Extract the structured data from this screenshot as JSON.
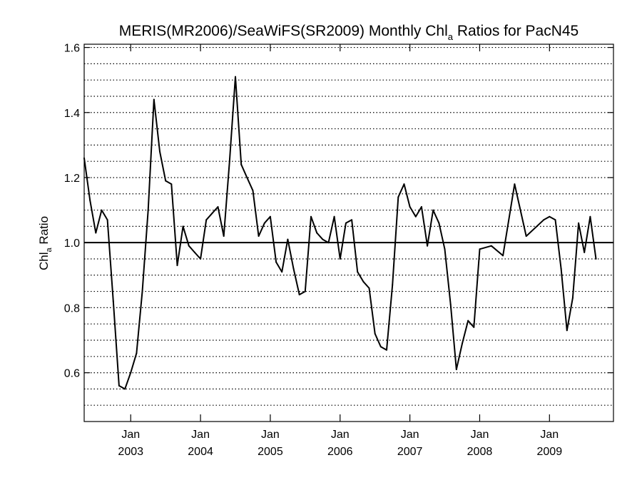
{
  "chart_data": {
    "type": "line",
    "title": {
      "pre": "MERIS(MR2006)/SeaWiFS(SR2009) Monthly Chl",
      "sub": "a",
      "post": " Ratios for PacN45"
    },
    "ylabel": {
      "pre": "Chl",
      "sub": "a",
      "post": " Ratio"
    },
    "xlabel": "",
    "ylim": [
      0.45,
      1.61
    ],
    "y_ticks": [
      "0.6",
      "0.8",
      "1.0",
      "1.2",
      "1.4",
      "1.6"
    ],
    "y_tick_values": [
      0.6,
      0.8,
      1.0,
      1.2,
      1.4,
      1.6
    ],
    "xlim": [
      "2002-05",
      "2009-12"
    ],
    "x_ticks": [
      {
        "month": "Jan",
        "year": "2003",
        "date": "2003-01"
      },
      {
        "month": "Jan",
        "year": "2004",
        "date": "2004-01"
      },
      {
        "month": "Jan",
        "year": "2005",
        "date": "2005-01"
      },
      {
        "month": "Jan",
        "year": "2006",
        "date": "2006-01"
      },
      {
        "month": "Jan",
        "year": "2007",
        "date": "2007-01"
      },
      {
        "month": "Jan",
        "year": "2008",
        "date": "2008-01"
      },
      {
        "month": "Jan",
        "year": "2009",
        "date": "2009-01"
      }
    ],
    "grid": "dotted horizontal lines every 0.05",
    "reference_line": 1.0,
    "series": [
      {
        "x": [
          "2002-05",
          "2002-06",
          "2002-07",
          "2002-08",
          "2002-09",
          "2002-10",
          "2002-11",
          "2002-12",
          "2003-01",
          "2003-02",
          "2003-03",
          "2003-04",
          "2003-05",
          "2003-06",
          "2003-07",
          "2003-08",
          "2003-09",
          "2003-10",
          "2003-11",
          "2003-12",
          "2004-01",
          "2004-02",
          "2004-03",
          "2004-04",
          "2004-05",
          "2004-06",
          "2004-07",
          "2004-08",
          "2004-09",
          "2004-10",
          "2004-11",
          "2004-12",
          "2005-01",
          "2005-02",
          "2005-03",
          "2005-04",
          "2005-05",
          "2005-06",
          "2005-07",
          "2005-08",
          "2005-09",
          "2005-10",
          "2005-11",
          "2005-12",
          "2006-01",
          "2006-02",
          "2006-03",
          "2006-04",
          "2006-05",
          "2006-06",
          "2006-07",
          "2006-08",
          "2006-09",
          "2006-10",
          "2006-11",
          "2006-12",
          "2007-01",
          "2007-02",
          "2007-03",
          "2007-04",
          "2007-05",
          "2007-06",
          "2007-07",
          "2007-08",
          "2007-09",
          "2007-10",
          "2007-11",
          "2007-12",
          "2008-01",
          "2008-03",
          "2008-05",
          "2008-07",
          "2008-09",
          "2008-12",
          "2009-01",
          "2009-02",
          "2009-03",
          "2009-04",
          "2009-05",
          "2009-06",
          "2009-07",
          "2009-08",
          "2009-09"
        ],
        "values": [
          1.26,
          1.13,
          1.03,
          1.1,
          1.07,
          0.82,
          0.56,
          0.55,
          0.6,
          0.66,
          0.85,
          1.1,
          1.44,
          1.28,
          1.19,
          1.18,
          0.93,
          1.05,
          0.99,
          0.97,
          0.95,
          1.07,
          1.09,
          1.11,
          1.02,
          1.25,
          1.51,
          1.24,
          1.2,
          1.16,
          1.02,
          1.06,
          1.08,
          0.94,
          0.91,
          1.01,
          0.92,
          0.84,
          0.85,
          1.08,
          1.03,
          1.01,
          1.0,
          1.08,
          0.95,
          1.06,
          1.07,
          0.91,
          0.88,
          0.86,
          0.72,
          0.68,
          0.67,
          0.87,
          1.14,
          1.18,
          1.11,
          1.08,
          1.11,
          0.99,
          1.1,
          1.06,
          0.98,
          0.81,
          0.61,
          0.69,
          0.76,
          0.74,
          0.98,
          0.99,
          0.96,
          1.18,
          1.02,
          1.07,
          1.08,
          1.07,
          0.92,
          0.73,
          0.83,
          1.06,
          0.97,
          1.08,
          0.95
        ]
      }
    ]
  }
}
